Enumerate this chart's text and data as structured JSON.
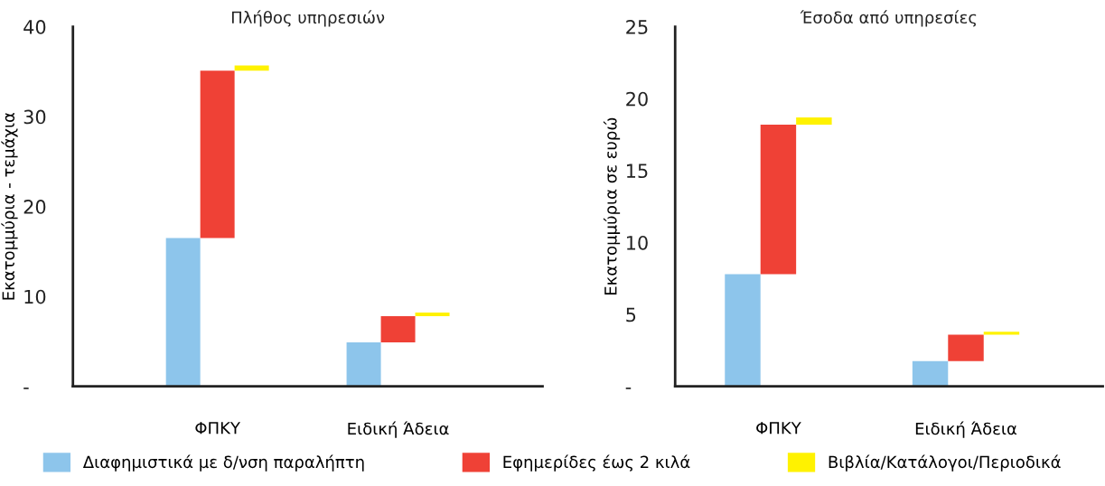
{
  "chart_data": [
    {
      "type": "bar",
      "title": "Πλήθος υπηρεσιών",
      "ylabel": "Εκατομμύρια - τεμάχια",
      "categories": [
        "ΦΠΚΥ",
        "Ειδική Άδεια"
      ],
      "ylim": [
        0,
        40
      ],
      "yticks": [
        {
          "value": 0,
          "label": "-"
        },
        10,
        20,
        30,
        40
      ],
      "grid": false,
      "legend": "bottom",
      "series": [
        {
          "name": "Διαφημιστικά με δ/νση παραλήπτη",
          "color": "#8dc5eb",
          "base": [
            0,
            0
          ],
          "values": [
            16.5,
            4.9
          ]
        },
        {
          "name": "Εφημερίδες έως 2 κιλά",
          "color": "#ef4136",
          "base": [
            16.5,
            4.9
          ],
          "values": [
            18.6,
            2.9
          ]
        },
        {
          "name": "Βιβλία/Κατάλογοι/Περιοδικά",
          "color": "#fff200",
          "base": [
            35.1,
            7.8
          ],
          "values": [
            0.6,
            0.4
          ]
        }
      ]
    },
    {
      "type": "bar",
      "title": "Έσοδα από υπηρεσίες",
      "ylabel": "Εκατομμύρια σε ευρώ",
      "categories": [
        "ΦΠΚΥ",
        "Ειδική Άδεια"
      ],
      "ylim": [
        0,
        25
      ],
      "yticks": [
        {
          "value": 0,
          "label": "-"
        },
        5,
        10,
        15,
        20,
        25
      ],
      "grid": false,
      "legend": "bottom",
      "series": [
        {
          "name": "Διαφημιστικά με δ/νση παραλήπτη",
          "color": "#8dc5eb",
          "base": [
            0,
            0
          ],
          "values": [
            7.8,
            1.75
          ]
        },
        {
          "name": "Εφημερίδες έως 2 κιλά",
          "color": "#ef4136",
          "base": [
            7.8,
            1.75
          ],
          "values": [
            10.4,
            1.85
          ]
        },
        {
          "name": "Βιβλία/Κατάλογοι/Περιοδικά",
          "color": "#fff200",
          "base": [
            18.2,
            3.6
          ],
          "values": [
            0.5,
            0.2
          ]
        }
      ]
    }
  ]
}
